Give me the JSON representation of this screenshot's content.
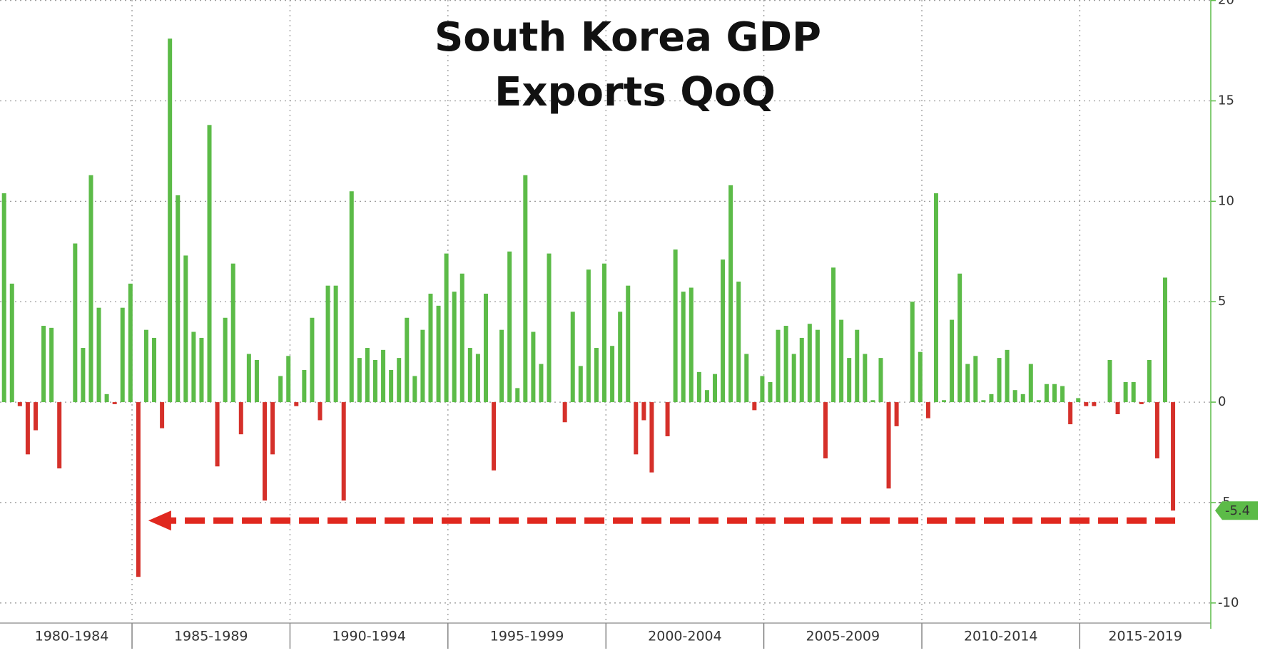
{
  "chart_data": {
    "type": "bar",
    "title": [
      "South Korea GDP",
      "Exports QoQ"
    ],
    "groups": [
      "1980-1984",
      "1985-1989",
      "1990-1994",
      "1995-1999",
      "2000-2004",
      "2005-2009",
      "2010-2014",
      "2015-2019"
    ],
    "values": [
      10.4,
      5.9,
      -0.2,
      -2.6,
      -1.4,
      3.8,
      3.7,
      -3.3,
      0,
      7.9,
      2.7,
      11.3,
      4.7,
      0.4,
      -0.1,
      4.7,
      5.9,
      -8.7,
      3.6,
      3.2,
      -1.3,
      18.1,
      10.3,
      7.3,
      3.5,
      3.2,
      13.8,
      -3.2,
      4.2,
      6.9,
      -1.6,
      2.4,
      2.1,
      -4.9,
      -2.6,
      1.3,
      2.3,
      -0.2,
      1.6,
      4.2,
      -0.9,
      5.8,
      5.8,
      -4.9,
      10.5,
      2.2,
      2.7,
      2.1,
      2.6,
      1.6,
      2.2,
      4.2,
      1.3,
      3.6,
      5.4,
      4.8,
      7.4,
      5.5,
      6.4,
      2.7,
      2.4,
      5.4,
      -3.4,
      3.6,
      7.5,
      0.7,
      11.3,
      3.5,
      1.9,
      7.4,
      0,
      -1.0,
      4.5,
      1.8,
      6.6,
      2.7,
      6.9,
      2.8,
      4.5,
      5.8,
      -2.6,
      -0.9,
      -3.5,
      0,
      -1.7,
      7.6,
      5.5,
      5.7,
      1.5,
      0.6,
      1.4,
      7.1,
      10.8,
      6.0,
      2.4,
      -0.4,
      1.3,
      1.0,
      3.6,
      3.8,
      2.4,
      3.2,
      3.9,
      3.6,
      -2.8,
      6.7,
      4.1,
      2.2,
      3.6,
      2.4,
      0.1,
      2.2,
      -4.3,
      -1.2,
      0,
      5.0,
      2.5,
      -0.8,
      10.4,
      0.1,
      4.1,
      6.4,
      1.9,
      2.3,
      0.1,
      0.4,
      2.2,
      2.6,
      0.6,
      0.4,
      1.9,
      0.1,
      0.9,
      0.9,
      0.8,
      -1.1,
      0.2,
      -0.2,
      -0.2,
      0,
      2.1,
      -0.6,
      1.0,
      1.0,
      -0.1,
      2.1,
      -2.8,
      6.2,
      -5.4
    ],
    "color_positive": "#5cbb48",
    "color_negative": "#d5302a",
    "ylim": [
      -11,
      20.2
    ],
    "yticks": [
      -10,
      -5,
      0,
      5,
      10,
      15,
      20
    ],
    "grid": true
  }
}
